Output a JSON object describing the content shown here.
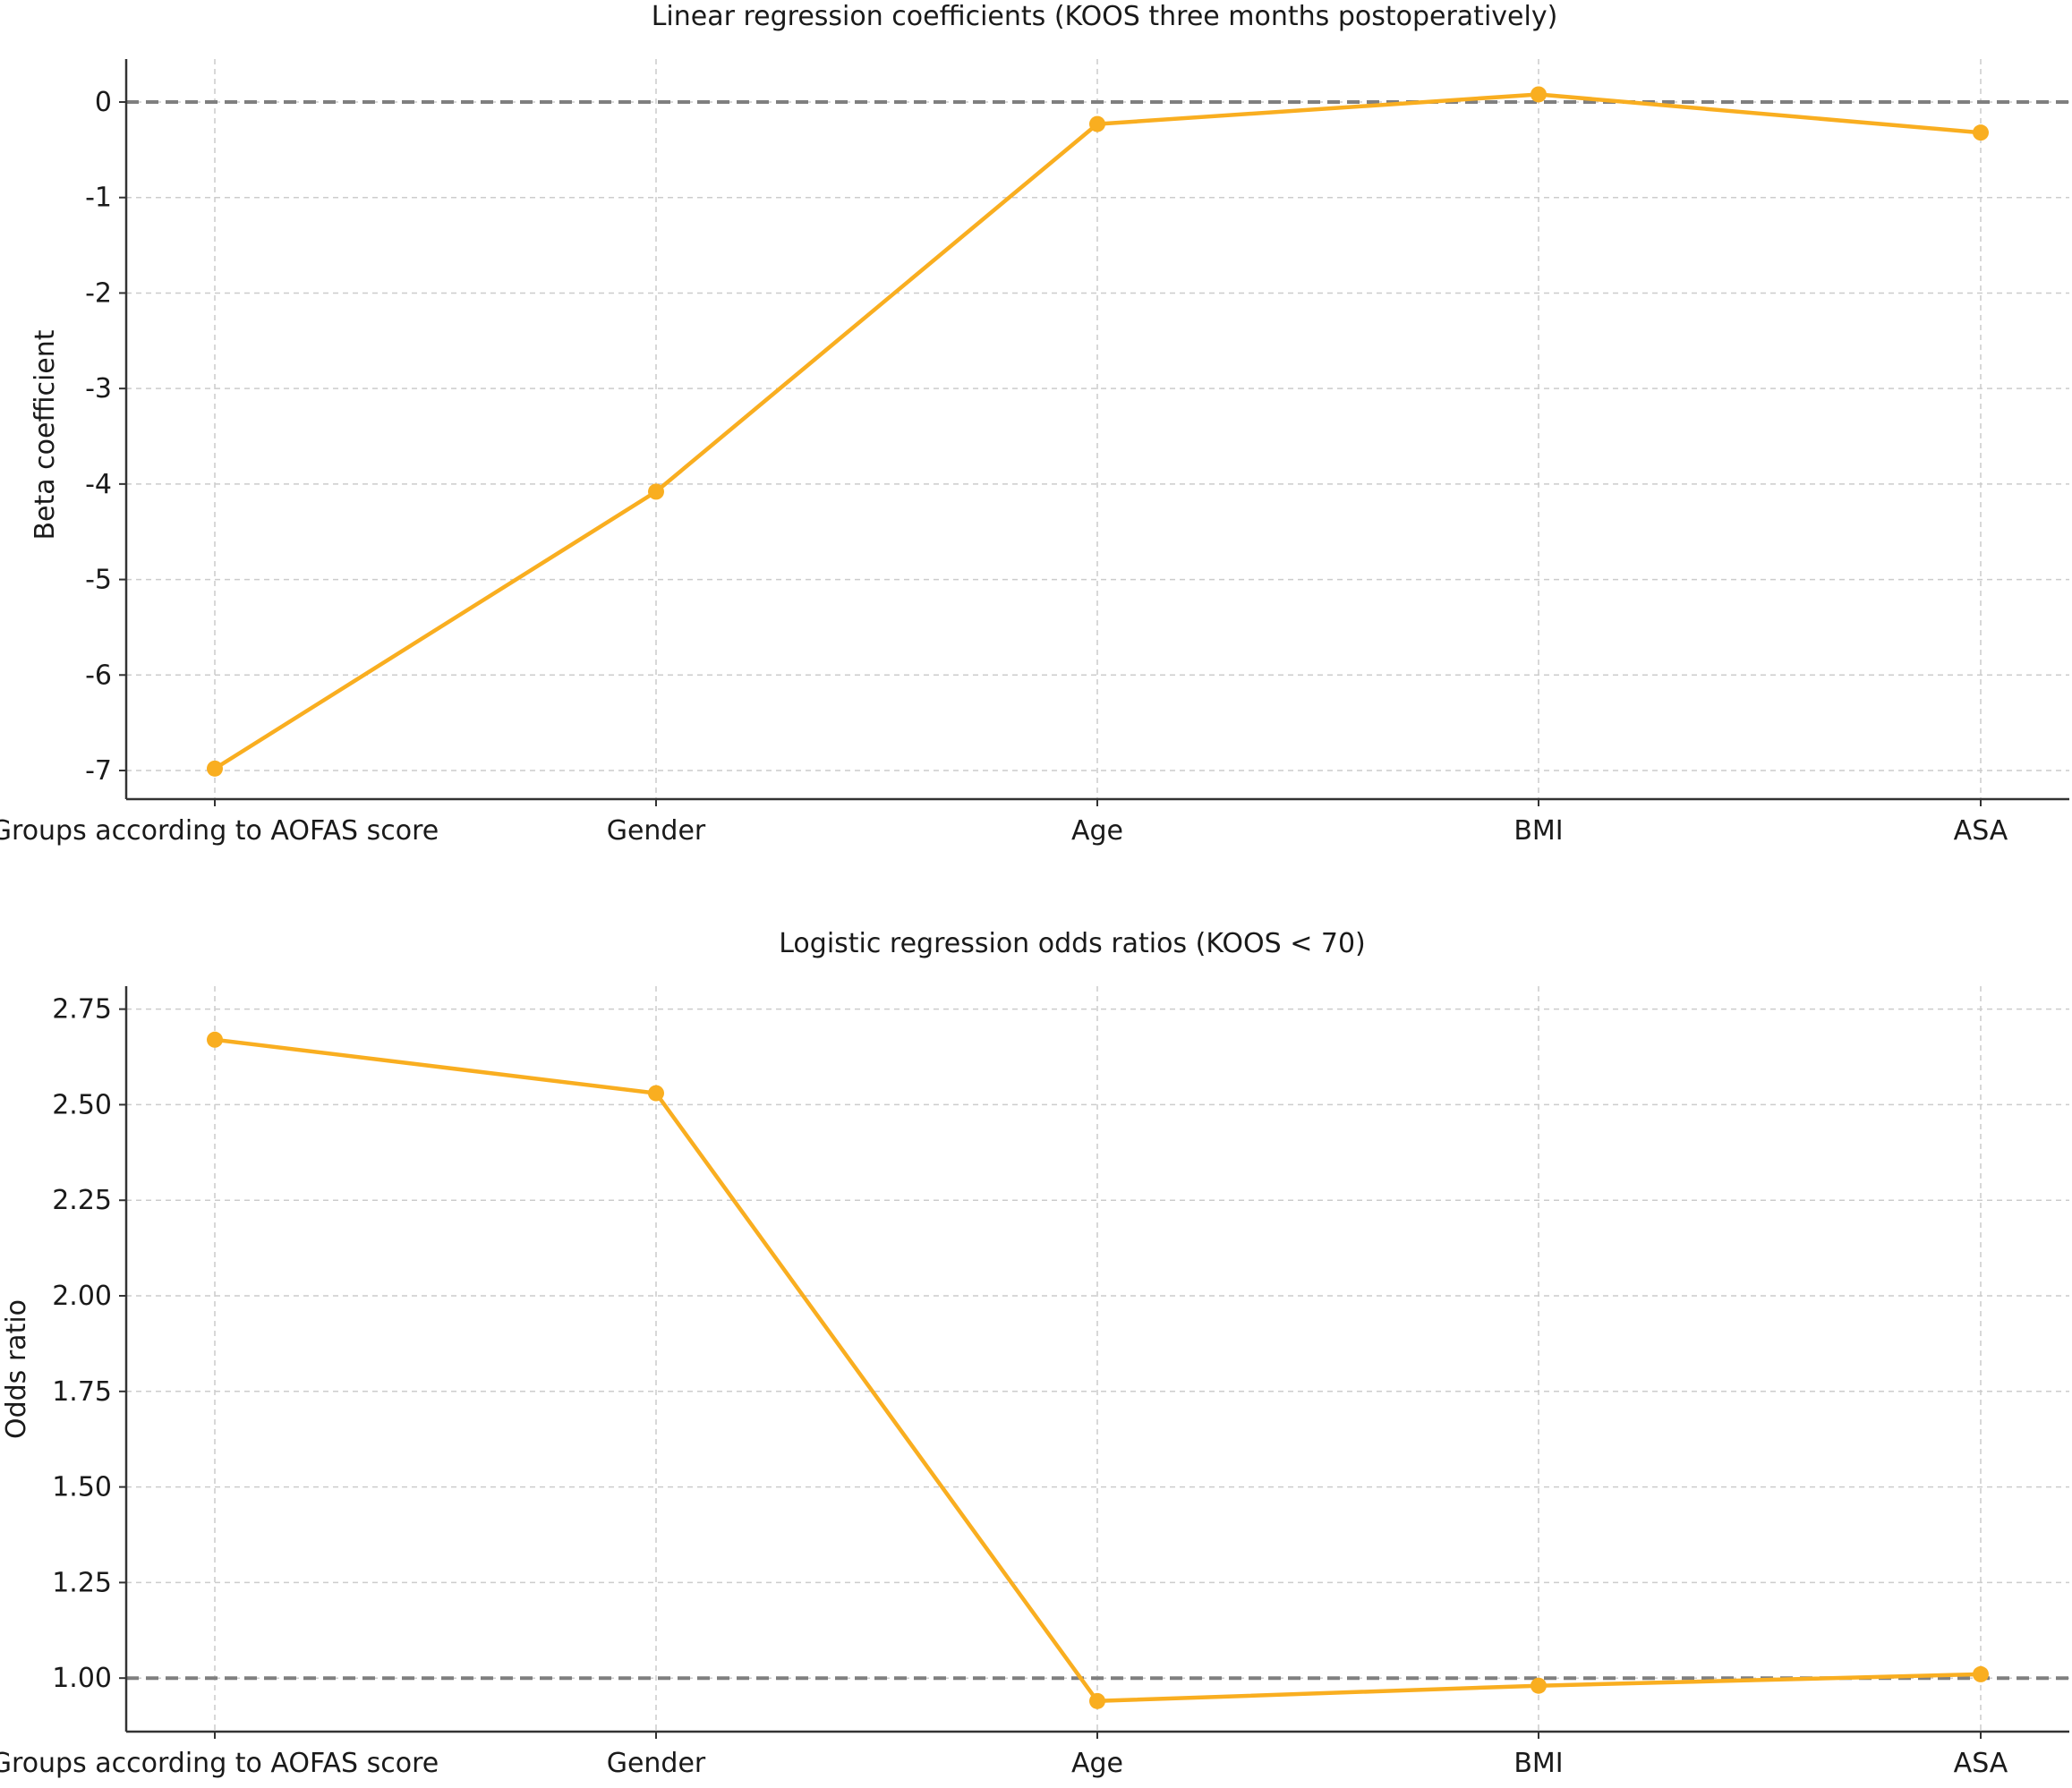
{
  "colors": {
    "line": "#F9AE20",
    "reference_line": "#7F7F7F",
    "grid": "#CCCCCC",
    "axis": "#333333"
  },
  "chart_data": [
    {
      "type": "line",
      "title": "Linear regression coefficients (KOOS three months postoperatively)",
      "xlabel": "",
      "ylabel": "Beta coefficient",
      "categories": [
        "Groups according to AOFAS score",
        "Gender",
        "Age",
        "BMI",
        "ASA"
      ],
      "values": [
        -6.98,
        -4.08,
        -0.23,
        0.08,
        -0.32
      ],
      "ylim": [
        -7.3,
        0.45
      ],
      "yticks": [
        0,
        -1,
        -2,
        -3,
        -4,
        -5,
        -6,
        -7
      ],
      "ytick_labels": [
        "0",
        "-1",
        "-2",
        "-3",
        "-4",
        "-5",
        "-6",
        "-7"
      ],
      "reference_line": 0,
      "grid": true,
      "legend": "none"
    },
    {
      "type": "line",
      "title": "Logistic regression odds ratios (KOOS < 70)",
      "xlabel": "",
      "ylabel": "Odds ratio",
      "categories": [
        "Groups according to AOFAS score",
        "Gender",
        "Age",
        "BMI",
        "ASA"
      ],
      "values": [
        2.67,
        2.53,
        0.94,
        0.98,
        1.01
      ],
      "ylim": [
        0.86,
        2.81
      ],
      "yticks": [
        2.75,
        2.5,
        2.25,
        2.0,
        1.75,
        1.5,
        1.25,
        1.0
      ],
      "ytick_labels": [
        "2.75",
        "2.50",
        "2.25",
        "2.00",
        "1.75",
        "1.50",
        "1.25",
        "1.00"
      ],
      "reference_line": 1,
      "grid": true,
      "legend": "none"
    }
  ]
}
